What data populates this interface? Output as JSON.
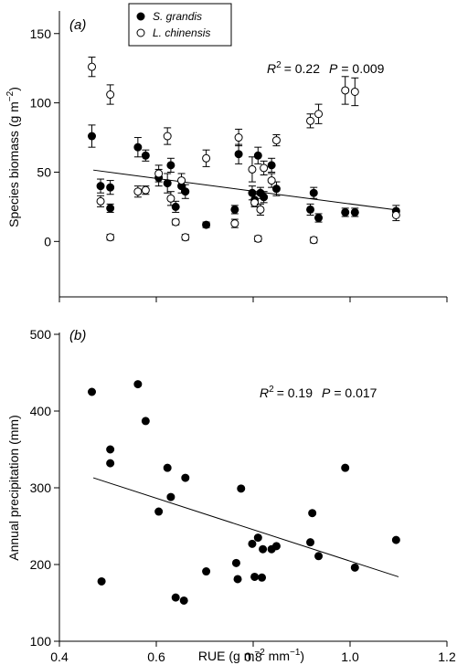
{
  "chart_data": [
    {
      "panel_label": "(a)",
      "type": "scatter",
      "ylabel": "Species biomass (g m",
      "ylabel_sup": "−2",
      "ylabel_end": ")",
      "xlim": [
        0.4,
        1.2
      ],
      "ylim": [
        -40,
        165
      ],
      "yticks": [
        0,
        50,
        100,
        150
      ],
      "xticks": [
        0.4,
        0.6,
        0.8,
        1.0,
        1.2
      ],
      "show_x_ticklabels": false,
      "grid": false,
      "legend_placement": "top-left",
      "stats": {
        "r2_value": "= 0.22",
        "p_value": "= 0.009"
      },
      "trend": {
        "x": [
          0.47,
          1.1
        ],
        "y": [
          51.5,
          22.5
        ]
      },
      "series": [
        {
          "name": "S. grandis",
          "marker": "filled",
          "points": [
            {
              "x": 0.467,
              "y": 76,
              "err": 8
            },
            {
              "x": 0.485,
              "y": 40,
              "err": 5
            },
            {
              "x": 0.505,
              "y": 24,
              "err": 3
            },
            {
              "x": 0.505,
              "y": 39,
              "err": 5
            },
            {
              "x": 0.562,
              "y": 68,
              "err": 7
            },
            {
              "x": 0.578,
              "y": 62,
              "err": 4
            },
            {
              "x": 0.605,
              "y": 46,
              "err": 6
            },
            {
              "x": 0.623,
              "y": 42,
              "err": 7
            },
            {
              "x": 0.63,
              "y": 55,
              "err": 5
            },
            {
              "x": 0.64,
              "y": 25,
              "err": 4
            },
            {
              "x": 0.652,
              "y": 40,
              "err": 5
            },
            {
              "x": 0.66,
              "y": 36,
              "err": 5
            },
            {
              "x": 0.703,
              "y": 12,
              "err": 2
            },
            {
              "x": 0.762,
              "y": 23,
              "err": 3
            },
            {
              "x": 0.77,
              "y": 63,
              "err": 7
            },
            {
              "x": 0.798,
              "y": 35,
              "err": 5
            },
            {
              "x": 0.803,
              "y": 30,
              "err": 4
            },
            {
              "x": 0.81,
              "y": 62,
              "err": 6
            },
            {
              "x": 0.815,
              "y": 35,
              "err": 4
            },
            {
              "x": 0.822,
              "y": 32,
              "err": 4
            },
            {
              "x": 0.838,
              "y": 55,
              "err": 5
            },
            {
              "x": 0.848,
              "y": 38,
              "err": 5
            },
            {
              "x": 0.918,
              "y": 23,
              "err": 4
            },
            {
              "x": 0.925,
              "y": 35,
              "err": 4
            },
            {
              "x": 0.935,
              "y": 17,
              "err": 3
            },
            {
              "x": 0.99,
              "y": 21,
              "err": 3
            },
            {
              "x": 1.01,
              "y": 21,
              "err": 3
            },
            {
              "x": 1.095,
              "y": 22,
              "err": 4
            }
          ]
        },
        {
          "name": "L. chinensis",
          "marker": "open",
          "points": [
            {
              "x": 0.467,
              "y": 126,
              "err": 7
            },
            {
              "x": 0.485,
              "y": 29,
              "err": 4
            },
            {
              "x": 0.505,
              "y": 3,
              "err": 2
            },
            {
              "x": 0.505,
              "y": 106,
              "err": 7
            },
            {
              "x": 0.562,
              "y": 36,
              "err": 4
            },
            {
              "x": 0.578,
              "y": 37,
              "err": 3
            },
            {
              "x": 0.605,
              "y": 49,
              "err": 6
            },
            {
              "x": 0.623,
              "y": 76,
              "err": 6
            },
            {
              "x": 0.63,
              "y": 31,
              "err": 5
            },
            {
              "x": 0.64,
              "y": 14,
              "err": 2
            },
            {
              "x": 0.652,
              "y": 44,
              "err": 5
            },
            {
              "x": 0.66,
              "y": 3,
              "err": 2
            },
            {
              "x": 0.703,
              "y": 60,
              "err": 6
            },
            {
              "x": 0.762,
              "y": 13,
              "err": 3
            },
            {
              "x": 0.77,
              "y": 75,
              "err": 6
            },
            {
              "x": 0.798,
              "y": 52,
              "err": 9
            },
            {
              "x": 0.803,
              "y": 28,
              "err": 3
            },
            {
              "x": 0.81,
              "y": 2,
              "err": 2
            },
            {
              "x": 0.815,
              "y": 23,
              "err": 4
            },
            {
              "x": 0.822,
              "y": 53,
              "err": 5
            },
            {
              "x": 0.838,
              "y": 44,
              "err": 5
            },
            {
              "x": 0.848,
              "y": 73,
              "err": 4
            },
            {
              "x": 0.918,
              "y": 87,
              "err": 5
            },
            {
              "x": 0.925,
              "y": 1,
              "err": 2
            },
            {
              "x": 0.935,
              "y": 92,
              "err": 7
            },
            {
              "x": 0.99,
              "y": 109,
              "err": 10
            },
            {
              "x": 1.01,
              "y": 108,
              "err": 10
            },
            {
              "x": 1.095,
              "y": 19,
              "err": 4
            }
          ]
        }
      ]
    },
    {
      "panel_label": "(b)",
      "type": "scatter",
      "xlabel": "RUE (g m",
      "xlabel_sup1": "−2",
      "xlabel_mid": " mm",
      "xlabel_sup2": "−1",
      "xlabel_end": ")",
      "ylabel": "Annual precipitation (mm)",
      "xlim": [
        0.4,
        1.2
      ],
      "ylim": [
        100,
        500
      ],
      "yticks": [
        100,
        200,
        300,
        400,
        500
      ],
      "xticks": [
        0.4,
        0.6,
        0.8,
        1.0,
        1.2
      ],
      "xtick_labels": [
        "0.4",
        "0.6",
        "0.8",
        "1.0",
        "1.2"
      ],
      "ytick_labels": [
        "100",
        "200",
        "300",
        "400",
        "500"
      ],
      "grid": false,
      "stats": {
        "r2_value": "= 0.19",
        "p_value": "= 0.017"
      },
      "trend": {
        "x": [
          0.47,
          1.1
        ],
        "y": [
          313,
          184
        ]
      },
      "series": [
        {
          "marker": "filled",
          "points": [
            {
              "x": 0.467,
              "y": 425
            },
            {
              "x": 0.487,
              "y": 178
            },
            {
              "x": 0.505,
              "y": 350
            },
            {
              "x": 0.505,
              "y": 332
            },
            {
              "x": 0.562,
              "y": 435
            },
            {
              "x": 0.578,
              "y": 387
            },
            {
              "x": 0.605,
              "y": 269
            },
            {
              "x": 0.623,
              "y": 326
            },
            {
              "x": 0.63,
              "y": 288
            },
            {
              "x": 0.64,
              "y": 157
            },
            {
              "x": 0.657,
              "y": 153
            },
            {
              "x": 0.66,
              "y": 313
            },
            {
              "x": 0.703,
              "y": 191
            },
            {
              "x": 0.765,
              "y": 202
            },
            {
              "x": 0.768,
              "y": 181
            },
            {
              "x": 0.775,
              "y": 299
            },
            {
              "x": 0.798,
              "y": 227
            },
            {
              "x": 0.803,
              "y": 184
            },
            {
              "x": 0.81,
              "y": 235
            },
            {
              "x": 0.818,
              "y": 183
            },
            {
              "x": 0.82,
              "y": 220
            },
            {
              "x": 0.838,
              "y": 220
            },
            {
              "x": 0.848,
              "y": 224
            },
            {
              "x": 0.918,
              "y": 229
            },
            {
              "x": 0.922,
              "y": 267
            },
            {
              "x": 0.935,
              "y": 211
            },
            {
              "x": 0.99,
              "y": 326
            },
            {
              "x": 1.01,
              "y": 196
            },
            {
              "x": 1.095,
              "y": 232
            }
          ]
        }
      ]
    }
  ],
  "annotations": {
    "r_symbol": "R",
    "r_sup": "2",
    "p_symbol": "P"
  }
}
